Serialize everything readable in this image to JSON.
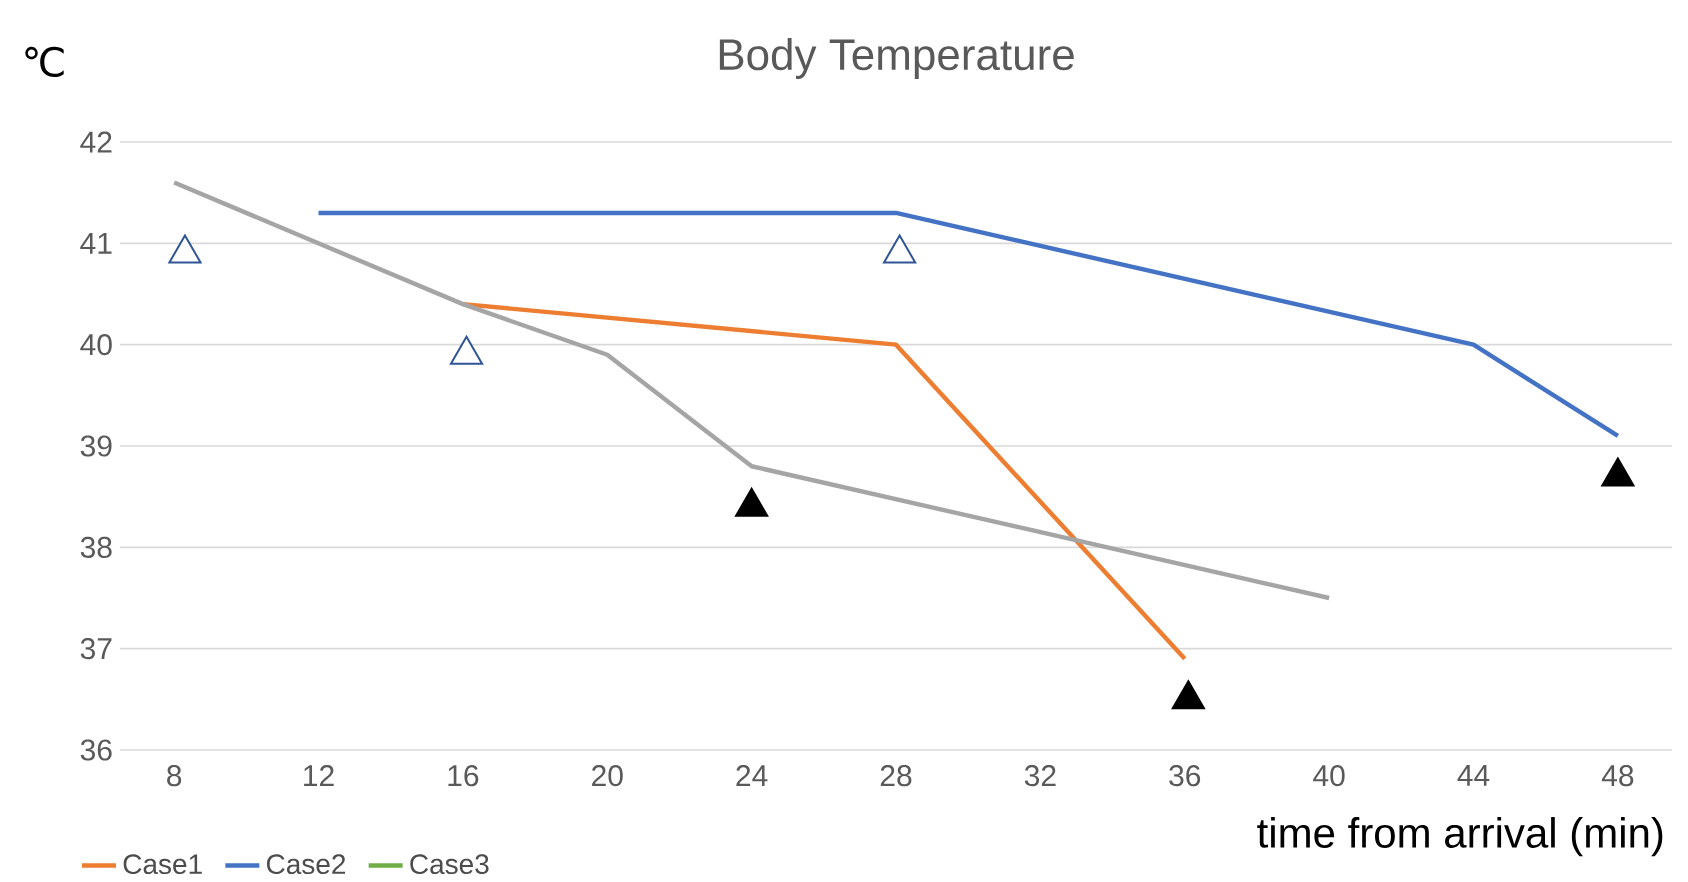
{
  "chart_data": {
    "type": "line",
    "title": "Body Temperature",
    "ylabel": "℃",
    "xlabel": "time from arrival  (min)",
    "xlim": [
      6.5,
      49.5
    ],
    "xticks": [
      8,
      12,
      16,
      20,
      24,
      28,
      32,
      36,
      40,
      44,
      48
    ],
    "ylim": [
      36,
      42
    ],
    "yticks": [
      36,
      37,
      38,
      39,
      40,
      41,
      42
    ],
    "grid": "y",
    "legend": "bottom left",
    "marker": "none",
    "line_style": "solid",
    "series": [
      {
        "name": "Case1",
        "color": "#ed7d31",
        "x": [
          16,
          28,
          36
        ],
        "values": [
          40.4,
          40.0,
          36.9
        ]
      },
      {
        "name": "Case2",
        "color": "#4472c4",
        "x": [
          12,
          28,
          44,
          48
        ],
        "values": [
          41.3,
          41.3,
          40.0,
          39.1
        ]
      },
      {
        "name": "Case3",
        "color": "#70ad47"
      },
      {
        "color": "#a5a5a5",
        "x": [
          8,
          16,
          20,
          24,
          40
        ],
        "values": [
          41.6,
          40.4,
          39.9,
          38.8,
          37.5
        ]
      },
      {
        "type": "scatter",
        "marker": "triangle",
        "color": "#ffffff",
        "x": [
          8.3,
          16.1,
          28.1
        ],
        "values": [
          40.9,
          39.9,
          40.9
        ]
      },
      {
        "type": "scatter",
        "marker": "triangle",
        "color": "#000000",
        "x": [
          24,
          36.1,
          48
        ],
        "values": [
          38.4,
          36.5,
          38.7
        ]
      }
    ]
  }
}
